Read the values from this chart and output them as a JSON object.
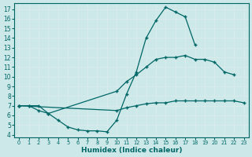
{
  "bg_color": "#cce8e8",
  "grid_color": "#d8eaea",
  "line_color": "#006666",
  "xlabel": "Humidex (Indice chaleur)",
  "xlim": [
    -0.5,
    23.5
  ],
  "ylim": [
    3.7,
    17.6
  ],
  "xticks": [
    0,
    1,
    2,
    3,
    4,
    5,
    6,
    7,
    8,
    9,
    10,
    11,
    12,
    13,
    14,
    15,
    16,
    17,
    18,
    19,
    20,
    21,
    22,
    23
  ],
  "yticks": [
    4,
    5,
    6,
    7,
    8,
    9,
    10,
    11,
    12,
    13,
    14,
    15,
    16,
    17
  ],
  "lines": [
    {
      "x": [
        0,
        1,
        2,
        3,
        4,
        5,
        6,
        7,
        8,
        9,
        10,
        11,
        12,
        13,
        14,
        15,
        16,
        17,
        18
      ],
      "y": [
        7.0,
        7.0,
        7.0,
        6.2,
        5.5,
        4.8,
        4.5,
        4.4,
        4.4,
        4.3,
        5.5,
        8.2,
        10.5,
        14.0,
        15.8,
        17.2,
        16.7,
        16.2,
        13.3
      ]
    },
    {
      "x": [
        0,
        1,
        2,
        3,
        10,
        11,
        12,
        13,
        14,
        15,
        16,
        17,
        18,
        19,
        20,
        21,
        22
      ],
      "y": [
        7.0,
        7.0,
        6.5,
        6.2,
        8.5,
        9.5,
        10.2,
        11.0,
        11.8,
        12.0,
        12.0,
        12.2,
        11.8,
        11.8,
        11.5,
        10.5,
        10.2
      ]
    },
    {
      "x": [
        0,
        10,
        11,
        12,
        13,
        14,
        15,
        16,
        17,
        18,
        19,
        20,
        21,
        22,
        23
      ],
      "y": [
        7.0,
        6.5,
        6.8,
        7.0,
        7.2,
        7.3,
        7.3,
        7.5,
        7.5,
        7.5,
        7.5,
        7.5,
        7.5,
        7.5,
        7.3
      ]
    }
  ]
}
